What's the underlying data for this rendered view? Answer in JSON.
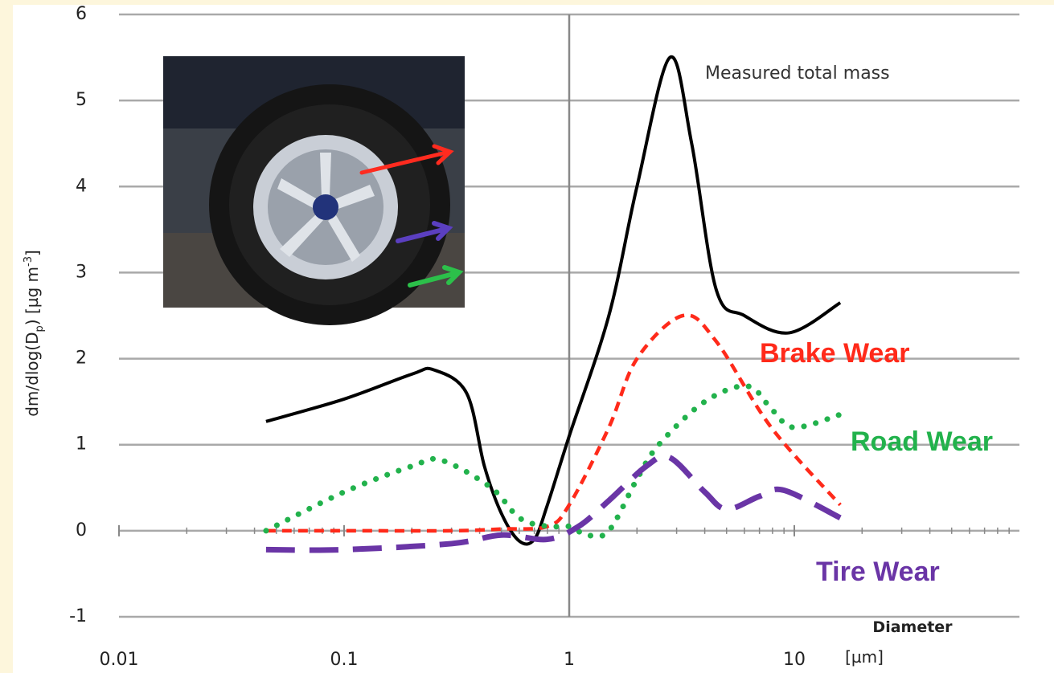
{
  "chart_data": {
    "type": "line",
    "y_label_parts": [
      "dm/dlog(D",
      "p",
      ") [µg m",
      "-3",
      "]"
    ],
    "x_label": "Diameter",
    "x_unit": "[µm]",
    "log_x": true,
    "xlim": [
      0.01,
      100
    ],
    "xticks": [
      0.01,
      0.1,
      1,
      10
    ],
    "ylim": [
      -1,
      6
    ],
    "yticks": [
      -1,
      0,
      1,
      2,
      3,
      4,
      5,
      6
    ],
    "grid": true,
    "series": [
      {
        "name": "Measured total mass",
        "color": "#000000",
        "style": "solid",
        "x": [
          0.045,
          0.1,
          0.2,
          0.25,
          0.35,
          0.42,
          0.5,
          0.6,
          0.7,
          0.8,
          1,
          1.5,
          2,
          2.8,
          3.5,
          4.5,
          6,
          9.5,
          16
        ],
        "values": [
          1.27,
          1.53,
          1.82,
          1.87,
          1.6,
          0.75,
          0.2,
          -0.12,
          -0.1,
          0.3,
          1.1,
          2.5,
          4.0,
          5.5,
          4.5,
          2.8,
          2.5,
          2.3,
          2.65
        ]
      },
      {
        "name": "Brake Wear",
        "color": "#ff2a1a",
        "style": "dashed",
        "x": [
          0.045,
          0.1,
          0.3,
          0.5,
          0.8,
          1,
          1.5,
          2,
          3.2,
          4.5,
          7.9,
          16
        ],
        "values": [
          0,
          0,
          0,
          0.02,
          0.05,
          0.3,
          1.2,
          2.0,
          2.5,
          2.2,
          1.2,
          0.3
        ]
      },
      {
        "name": "Road Wear",
        "color": "#22b24c",
        "style": "dotted",
        "x": [
          0.045,
          0.1,
          0.2,
          0.27,
          0.45,
          0.6,
          0.8,
          1,
          1.2,
          1.5,
          2,
          2.5,
          4,
          6.2,
          8,
          10,
          16
        ],
        "values": [
          0,
          0.45,
          0.75,
          0.82,
          0.5,
          0.15,
          0.05,
          0.05,
          -0.05,
          0,
          0.6,
          1.0,
          1.5,
          1.68,
          1.4,
          1.2,
          1.35
        ]
      },
      {
        "name": "Tire Wear",
        "color": "#6a35a6",
        "style": "longdash",
        "x": [
          0.045,
          0.1,
          0.3,
          0.5,
          0.8,
          1.1,
          1.5,
          2.2,
          2.8,
          4,
          5,
          7,
          9,
          16
        ],
        "values": [
          -0.22,
          -0.22,
          -0.15,
          -0.05,
          -0.1,
          0.05,
          0.35,
          0.75,
          0.85,
          0.45,
          0.25,
          0.4,
          0.47,
          0.15
        ]
      }
    ]
  }
}
